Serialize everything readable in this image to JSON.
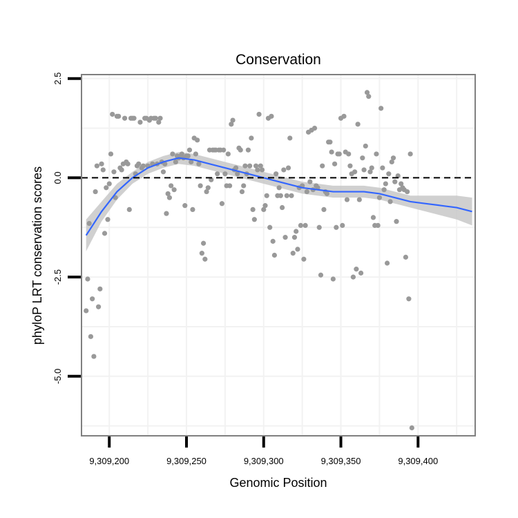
{
  "chart_data": {
    "type": "scatter",
    "title": "Conservation",
    "xlabel": "Genomic Position",
    "ylabel": "phyloP LRT conservation scores",
    "xlim": [
      9309182,
      9309437
    ],
    "ylim": [
      -6.5,
      2.6
    ],
    "x_ticks": [
      9309200,
      9309250,
      9309300,
      9309350,
      9309400
    ],
    "x_tick_labels": [
      "9,309,200",
      "9,309,250",
      "9,309,300",
      "9,309,350",
      "9,309,400"
    ],
    "y_ticks": [
      2.5,
      0,
      -2.5,
      -5
    ],
    "y_tick_labels": [
      "2.5",
      "0.0",
      "-2.5",
      "-5.0"
    ],
    "reference_line": {
      "y": 0,
      "style": "dashed",
      "color": "#000000"
    },
    "grid": true,
    "colors": {
      "points": "#999999",
      "smooth_line": "#3366ff",
      "ribbon": "#c8c8c8",
      "panel_border": "#7f7f7f",
      "grid": "#f2f2f2"
    },
    "points": [
      [
        9309185,
        -3.35
      ],
      [
        9309186,
        -2.55
      ],
      [
        9309187,
        -1.15
      ],
      [
        9309188,
        -4.0
      ],
      [
        9309189,
        -3.05
      ],
      [
        9309190,
        -4.5
      ],
      [
        9309191,
        -0.35
      ],
      [
        9309192,
        0.3
      ],
      [
        9309193,
        -3.25
      ],
      [
        9309194,
        -2.8
      ],
      [
        9309195,
        0.35
      ],
      [
        9309196,
        0.2
      ],
      [
        9309197,
        -1.4
      ],
      [
        9309198,
        -0.25
      ],
      [
        9309199,
        -1.05
      ],
      [
        9309200,
        -0.15
      ],
      [
        9309201,
        0.6
      ],
      [
        9309202,
        1.6
      ],
      [
        9309203,
        0.15
      ],
      [
        9309204,
        -0.5
      ],
      [
        9309205,
        1.55
      ],
      [
        9309206,
        1.55
      ],
      [
        9309207,
        0.25
      ],
      [
        9309208,
        0.2
      ],
      [
        9309209,
        0.35
      ],
      [
        9309210,
        1.5
      ],
      [
        9309211,
        0.4
      ],
      [
        9309212,
        0.35
      ],
      [
        9309213,
        -0.8
      ],
      [
        9309214,
        1.5
      ],
      [
        9309215,
        1.5
      ],
      [
        9309216,
        1.5
      ],
      [
        9309217,
        0.1
      ],
      [
        9309218,
        0.3
      ],
      [
        9309219,
        0.35
      ],
      [
        9309220,
        1.4
      ],
      [
        9309221,
        0.25
      ],
      [
        9309222,
        0.3
      ],
      [
        9309223,
        1.5
      ],
      [
        9309224,
        1.5
      ],
      [
        9309225,
        0.3
      ],
      [
        9309226,
        1.45
      ],
      [
        9309227,
        1.5
      ],
      [
        9309228,
        0.35
      ],
      [
        9309229,
        1.5
      ],
      [
        9309230,
        1.5
      ],
      [
        9309231,
        0.35
      ],
      [
        9309232,
        1.4
      ],
      [
        9309233,
        1.5
      ],
      [
        9309234,
        0.4
      ],
      [
        9309235,
        0.15
      ],
      [
        9309236,
        0.35
      ],
      [
        9309237,
        -0.9
      ],
      [
        9309238,
        -0.4
      ],
      [
        9309239,
        -0.5
      ],
      [
        9309240,
        -0.2
      ],
      [
        9309241,
        0.6
      ],
      [
        9309242,
        -0.3
      ],
      [
        9309243,
        0.4
      ],
      [
        9309244,
        0.55
      ],
      [
        9309245,
        0.5
      ],
      [
        9309246,
        0.55
      ],
      [
        9309247,
        0.6
      ],
      [
        9309248,
        0.5
      ],
      [
        9309249,
        -0.7
      ],
      [
        9309250,
        0.55
      ],
      [
        9309251,
        0.55
      ],
      [
        9309252,
        0.7
      ],
      [
        9309253,
        0.4
      ],
      [
        9309254,
        -0.8
      ],
      [
        9309255,
        1.0
      ],
      [
        9309256,
        0.6
      ],
      [
        9309257,
        0.95
      ],
      [
        9309258,
        0.35
      ],
      [
        9309259,
        -0.2
      ],
      [
        9309260,
        -1.9
      ],
      [
        9309261,
        -1.65
      ],
      [
        9309262,
        -2.05
      ],
      [
        9309263,
        -0.35
      ],
      [
        9309264,
        -0.25
      ],
      [
        9309265,
        0.7
      ],
      [
        9309266,
        -0.05
      ],
      [
        9309267,
        0.7
      ],
      [
        9309268,
        0.7
      ],
      [
        9309269,
        0.7
      ],
      [
        9309270,
        0.1
      ],
      [
        9309271,
        0.7
      ],
      [
        9309272,
        0.7
      ],
      [
        9309273,
        -0.65
      ],
      [
        9309274,
        0.7
      ],
      [
        9309275,
        0.1
      ],
      [
        9309276,
        -0.2
      ],
      [
        9309277,
        0.6
      ],
      [
        9309278,
        -0.2
      ],
      [
        9309279,
        1.35
      ],
      [
        9309280,
        1.45
      ],
      [
        9309281,
        0.2
      ],
      [
        9309282,
        0.25
      ],
      [
        9309283,
        0.1
      ],
      [
        9309284,
        0.75
      ],
      [
        9309285,
        0.7
      ],
      [
        9309286,
        -0.35
      ],
      [
        9309287,
        -0.2
      ],
      [
        9309288,
        0.3
      ],
      [
        9309289,
        0.1
      ],
      [
        9309290,
        0.7
      ],
      [
        9309291,
        0.3
      ],
      [
        9309292,
        1.0
      ],
      [
        9309293,
        -0.8
      ],
      [
        9309294,
        -1.05
      ],
      [
        9309295,
        0.3
      ],
      [
        9309296,
        0.2
      ],
      [
        9309297,
        1.6
      ],
      [
        9309298,
        0.3
      ],
      [
        9309299,
        0.2
      ],
      [
        9309300,
        -0.8
      ],
      [
        9309301,
        -0.7
      ],
      [
        9309302,
        -0.45
      ],
      [
        9309303,
        1.5
      ],
      [
        9309304,
        -1.25
      ],
      [
        9309305,
        1.55
      ],
      [
        9309306,
        -1.6
      ],
      [
        9309307,
        -1.95
      ],
      [
        9309308,
        0.1
      ],
      [
        9309309,
        -0.45
      ],
      [
        9309310,
        -0.25
      ],
      [
        9309311,
        -0.45
      ],
      [
        9309312,
        -0.75
      ],
      [
        9309313,
        0.2
      ],
      [
        9309314,
        -1.5
      ],
      [
        9309315,
        -0.45
      ],
      [
        9309316,
        0.25
      ],
      [
        9309317,
        1.0
      ],
      [
        9309318,
        -0.45
      ],
      [
        9309319,
        -1.9
      ],
      [
        9309320,
        -1.5
      ],
      [
        9309321,
        -1.35
      ],
      [
        9309322,
        -1.8
      ],
      [
        9309323,
        -0.25
      ],
      [
        9309324,
        -1.2
      ],
      [
        9309325,
        -0.2
      ],
      [
        9309326,
        -2.05
      ],
      [
        9309327,
        -1.2
      ],
      [
        9309328,
        -0.35
      ],
      [
        9309329,
        1.15
      ],
      [
        9309330,
        -0.1
      ],
      [
        9309331,
        1.2
      ],
      [
        9309332,
        -0.3
      ],
      [
        9309333,
        1.25
      ],
      [
        9309334,
        -0.2
      ],
      [
        9309335,
        -0.25
      ],
      [
        9309336,
        -1.25
      ],
      [
        9309337,
        -2.45
      ],
      [
        9309338,
        0.3
      ],
      [
        9309339,
        -0.8
      ],
      [
        9309340,
        -0.35
      ],
      [
        9309341,
        -0.4
      ],
      [
        9309342,
        0.9
      ],
      [
        9309343,
        0.9
      ],
      [
        9309344,
        0.65
      ],
      [
        9309345,
        -2.55
      ],
      [
        9309346,
        0.35
      ],
      [
        9309347,
        -1.25
      ],
      [
        9309348,
        0.6
      ],
      [
        9309349,
        0.6
      ],
      [
        9309350,
        1.5
      ],
      [
        9309351,
        -1.2
      ],
      [
        9309352,
        1.55
      ],
      [
        9309353,
        0.65
      ],
      [
        9309354,
        -0.55
      ],
      [
        9309355,
        0.6
      ],
      [
        9309356,
        0.3
      ],
      [
        9309357,
        0.1
      ],
      [
        9309358,
        -2.5
      ],
      [
        9309359,
        0.15
      ],
      [
        9309360,
        -2.3
      ],
      [
        9309361,
        1.35
      ],
      [
        9309362,
        -0.55
      ],
      [
        9309363,
        -2.4
      ],
      [
        9309364,
        0.5
      ],
      [
        9309365,
        0.2
      ],
      [
        9309366,
        0.8
      ],
      [
        9309367,
        2.15
      ],
      [
        9309368,
        2.05
      ],
      [
        9309369,
        0.15
      ],
      [
        9309370,
        0.25
      ],
      [
        9309371,
        -1.0
      ],
      [
        9309372,
        -1.2
      ],
      [
        9309373,
        0.6
      ],
      [
        9309374,
        -1.2
      ],
      [
        9309375,
        -0.5
      ],
      [
        9309376,
        1.75
      ],
      [
        9309377,
        0.25
      ],
      [
        9309378,
        -0.3
      ],
      [
        9309379,
        -0.15
      ],
      [
        9309380,
        -2.15
      ],
      [
        9309381,
        0.1
      ],
      [
        9309382,
        -0.6
      ],
      [
        9309383,
        0.4
      ],
      [
        9309384,
        0.5
      ],
      [
        9309385,
        -0.1
      ],
      [
        9309386,
        -1.1
      ],
      [
        9309387,
        0.05
      ],
      [
        9309388,
        -0.3
      ],
      [
        9309389,
        -0.15
      ],
      [
        9309390,
        -0.25
      ],
      [
        9309391,
        -0.3
      ],
      [
        9309392,
        -2.0
      ],
      [
        9309393,
        -0.35
      ],
      [
        9309394,
        -3.05
      ],
      [
        9309395,
        0.6
      ],
      [
        9309396,
        -6.3
      ]
    ],
    "smooth_line": {
      "x": [
        9309185,
        9309195,
        9309205,
        9309215,
        9309225,
        9309235,
        9309245,
        9309255,
        9309265,
        9309275,
        9309285,
        9309295,
        9309305,
        9309315,
        9309325,
        9309335,
        9309345,
        9309355,
        9309365,
        9309375,
        9309385,
        9309395,
        9309405,
        9309415,
        9309425,
        9309435
      ],
      "y": [
        -1.45,
        -0.85,
        -0.35,
        0.0,
        0.25,
        0.4,
        0.5,
        0.45,
        0.35,
        0.25,
        0.15,
        0.05,
        -0.05,
        -0.15,
        -0.25,
        -0.3,
        -0.35,
        -0.35,
        -0.35,
        -0.4,
        -0.5,
        -0.6,
        -0.65,
        -0.7,
        -0.75,
        -0.85
      ],
      "lower": [
        -1.85,
        -1.1,
        -0.55,
        -0.15,
        0.1,
        0.25,
        0.35,
        0.3,
        0.2,
        0.1,
        0.0,
        -0.1,
        -0.2,
        -0.3,
        -0.4,
        -0.45,
        -0.5,
        -0.5,
        -0.5,
        -0.55,
        -0.65,
        -0.75,
        -0.85,
        -0.95,
        -1.05,
        -1.2
      ],
      "upper": [
        -1.05,
        -0.6,
        -0.15,
        0.15,
        0.4,
        0.55,
        0.65,
        0.6,
        0.5,
        0.4,
        0.3,
        0.2,
        0.1,
        0.0,
        -0.1,
        -0.15,
        -0.2,
        -0.2,
        -0.2,
        -0.25,
        -0.35,
        -0.45,
        -0.45,
        -0.45,
        -0.45,
        -0.5
      ]
    }
  }
}
